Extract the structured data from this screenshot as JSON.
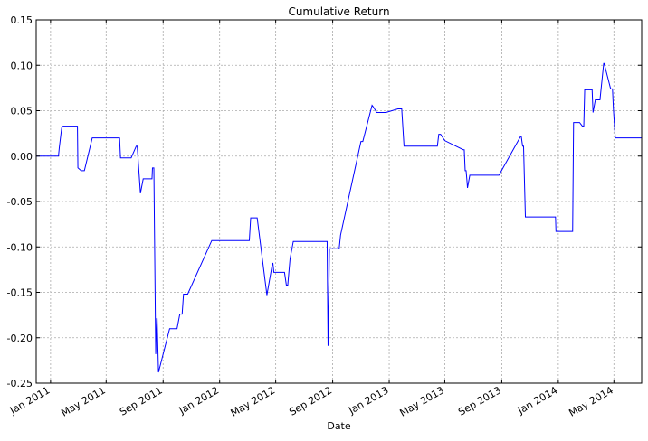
{
  "chart_data": {
    "type": "line",
    "title": "Cumulative Return",
    "xlabel": "Date",
    "ylabel": "",
    "ylim": [
      -0.25,
      0.15
    ],
    "xlim": [
      "2010-12-01",
      "2014-06-30"
    ],
    "grid": true,
    "yticks": [
      -0.25,
      -0.2,
      -0.15,
      -0.1,
      -0.05,
      0.0,
      0.05,
      0.1,
      0.15
    ],
    "ytick_labels": [
      "-0.25",
      "-0.20",
      "-0.15",
      "-0.10",
      "-0.05",
      "0.00",
      "0.05",
      "0.10",
      "0.15"
    ],
    "xticks": [
      "2011-01-01",
      "2011-05-01",
      "2011-09-01",
      "2012-01-01",
      "2012-05-01",
      "2012-09-01",
      "2013-01-01",
      "2013-05-01",
      "2013-09-01",
      "2014-01-01",
      "2014-05-01"
    ],
    "xtick_labels": [
      "Jan 2011",
      "May 2011",
      "Sep 2011",
      "Jan 2012",
      "May 2012",
      "Sep 2012",
      "Jan 2013",
      "May 2013",
      "Sep 2013",
      "Jan 2014",
      "May 2014"
    ],
    "series": [
      {
        "color": "#0000ff",
        "x": [
          "2010-12-01",
          "2011-01-18",
          "2011-01-20",
          "2011-01-25",
          "2011-01-28",
          "2011-02-28",
          "2011-03-01",
          "2011-03-08",
          "2011-03-15",
          "2011-04-01",
          "2011-04-27",
          "2011-05-02",
          "2011-05-30",
          "2011-06-01",
          "2011-06-08",
          "2011-06-10",
          "2011-06-14",
          "2011-06-20",
          "2011-06-24",
          "2011-07-05",
          "2011-07-07",
          "2011-07-14",
          "2011-07-20",
          "2011-08-08",
          "2011-08-09",
          "2011-08-10",
          "2011-08-12",
          "2011-08-16",
          "2011-08-18",
          "2011-08-19",
          "2011-08-22",
          "2011-09-15",
          "2011-10-01",
          "2011-10-07",
          "2011-10-12",
          "2011-10-15",
          "2011-10-24",
          "2011-12-15",
          "2012-03-05",
          "2012-03-08",
          "2012-03-10",
          "2012-03-14",
          "2012-03-22",
          "2012-04-12",
          "2012-04-24",
          "2012-04-25",
          "2012-04-27",
          "2012-05-02",
          "2012-05-20",
          "2012-05-24",
          "2012-05-25",
          "2012-05-27",
          "2012-06-01",
          "2012-06-08",
          "2012-06-12",
          "2012-06-20",
          "2012-06-25",
          "2012-07-05",
          "2012-08-20",
          "2012-08-22",
          "2012-08-25",
          "2012-08-28",
          "2012-09-12",
          "2012-09-15",
          "2012-09-18",
          "2012-11-01",
          "2012-11-02",
          "2012-11-05",
          "2012-11-25",
          "2012-11-28",
          "2012-12-05",
          "2012-12-25",
          "2013-01-20",
          "2013-01-22",
          "2013-01-28",
          "2013-02-02",
          "2013-04-15",
          "2013-04-18",
          "2013-04-22",
          "2013-05-01",
          "2013-06-10",
          "2013-06-12",
          "2013-06-14",
          "2013-06-16",
          "2013-06-18",
          "2013-06-19",
          "2013-06-24",
          "2013-06-27",
          "2013-07-01",
          "2013-08-05",
          "2013-08-08",
          "2013-08-20",
          "2013-08-25",
          "2013-08-26",
          "2013-10-12",
          "2013-10-13",
          "2013-10-16",
          "2013-10-17",
          "2013-10-18",
          "2013-10-22",
          "2013-12-26",
          "2013-12-27",
          "2014-02-01",
          "2014-02-03",
          "2014-02-16",
          "2014-02-22",
          "2014-02-25",
          "2014-02-27",
          "2014-03-15",
          "2014-03-17",
          "2014-03-22",
          "2014-04-01",
          "2014-04-09",
          "2014-04-10",
          "2014-04-24",
          "2014-04-26",
          "2014-04-28",
          "2014-04-30",
          "2014-05-04",
          "2014-06-30"
        ],
        "y": [
          0.0,
          0.0,
          0.01,
          0.031,
          0.033,
          0.033,
          -0.013,
          -0.016,
          -0.016,
          0.02,
          0.02,
          0.02,
          0.02,
          -0.002,
          -0.002,
          -0.002,
          -0.002,
          -0.002,
          -0.002,
          0.011,
          0.011,
          -0.041,
          -0.025,
          -0.025,
          -0.013,
          -0.013,
          -0.013,
          -0.218,
          -0.179,
          -0.179,
          -0.238,
          -0.19,
          -0.19,
          -0.174,
          -0.174,
          -0.152,
          -0.152,
          -0.093,
          -0.093,
          -0.068,
          -0.068,
          -0.068,
          -0.068,
          -0.153,
          -0.118,
          -0.118,
          -0.128,
          -0.128,
          -0.128,
          -0.142,
          -0.142,
          -0.142,
          -0.113,
          -0.094,
          -0.094,
          -0.094,
          -0.094,
          -0.094,
          -0.094,
          -0.209,
          -0.102,
          -0.102,
          -0.102,
          -0.102,
          -0.087,
          0.016,
          0.016,
          0.016,
          0.056,
          0.054,
          0.048,
          0.048,
          0.052,
          0.052,
          0.052,
          0.011,
          0.011,
          0.024,
          0.024,
          0.017,
          0.007,
          0.007,
          -0.016,
          -0.016,
          -0.028,
          -0.035,
          -0.021,
          -0.021,
          -0.021,
          -0.021,
          -0.021,
          -0.021,
          -0.021,
          -0.021,
          0.022,
          0.022,
          0.011,
          0.011,
          0.011,
          -0.067,
          -0.067,
          -0.083,
          -0.083,
          0.037,
          0.037,
          0.033,
          0.033,
          0.073,
          0.073,
          0.048,
          0.062,
          0.062,
          0.102,
          0.102,
          0.074,
          0.074,
          0.074,
          0.052,
          0.02,
          0.02
        ]
      }
    ]
  }
}
